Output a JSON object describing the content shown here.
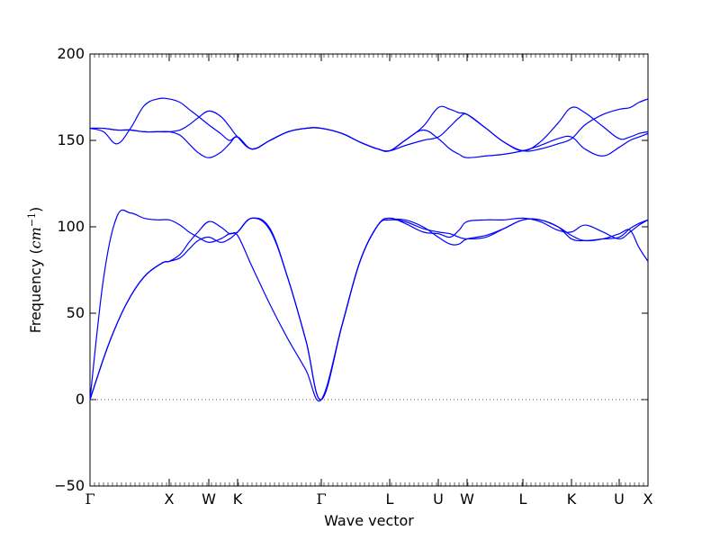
{
  "chart_data": {
    "type": "line",
    "title": "",
    "xlabel": "Wave vector",
    "ylabel": "Frequency",
    "ylabel_unit": "cm",
    "ylabel_unit_exp": "−1",
    "ylim": [
      -50,
      200
    ],
    "yticks": [
      -50,
      0,
      50,
      100,
      150,
      200
    ],
    "xlim": [
      0,
      6.2
    ],
    "zero_line": true,
    "grid": false,
    "line_color": "#0000ff",
    "zero_line_color": "#555555",
    "high_symmetry_points": [
      {
        "label": "Γ",
        "x": 0.0
      },
      {
        "label": "X",
        "x": 0.88
      },
      {
        "label": "W",
        "x": 1.32
      },
      {
        "label": "K",
        "x": 1.64
      },
      {
        "label": "Γ",
        "x": 2.57
      },
      {
        "label": "L",
        "x": 3.33
      },
      {
        "label": "U",
        "x": 3.87
      },
      {
        "label": "W",
        "x": 4.19
      },
      {
        "label": "L",
        "x": 4.81
      },
      {
        "label": "K",
        "x": 5.35
      },
      {
        "label": "U",
        "x": 5.88
      },
      {
        "label": "X",
        "x": 6.2
      }
    ],
    "series": [
      {
        "x": [
          0,
          0.2,
          0.4,
          0.6,
          0.8,
          0.88,
          1.0,
          1.1,
          1.2,
          1.32,
          1.45,
          1.55,
          1.64,
          1.8,
          2.0,
          2.2,
          2.4,
          2.57,
          2.8,
          3.0,
          3.2,
          3.33,
          3.5,
          3.7,
          3.87,
          4.0,
          4.1,
          4.19,
          4.4,
          4.6,
          4.81,
          5.0,
          5.2,
          5.35,
          5.5,
          5.7,
          5.88,
          6.0,
          6.1,
          6.2
        ],
        "y": [
          0,
          31,
          55,
          71,
          79,
          80,
          84,
          91,
          97,
          103,
          100,
          96,
          95,
          77,
          55,
          35,
          17,
          0,
          43,
          80,
          101,
          104,
          104,
          100,
          94,
          90,
          90,
          93,
          95,
          99,
          104,
          104,
          100,
          95,
          92,
          93,
          96,
          98,
          88,
          80
        ]
      },
      {
        "x": [
          0,
          0.2,
          0.4,
          0.6,
          0.8,
          0.88,
          1.0,
          1.1,
          1.2,
          1.32,
          1.45,
          1.55,
          1.64,
          1.8,
          2.0,
          2.2,
          2.4,
          2.57,
          2.8,
          3.0,
          3.2,
          3.33,
          3.5,
          3.7,
          3.87,
          4.0,
          4.1,
          4.19,
          4.4,
          4.6,
          4.81,
          5.0,
          5.2,
          5.35,
          5.5,
          5.7,
          5.88,
          6.0,
          6.1,
          6.2
        ],
        "y": [
          0,
          31,
          55,
          71,
          79,
          80,
          82,
          87,
          92,
          94,
          91,
          93,
          97,
          105,
          98,
          70,
          34,
          0,
          43,
          80,
          101,
          104,
          103,
          99,
          97,
          96,
          94,
          93,
          94,
          99,
          104,
          104,
          100,
          93,
          92,
          93,
          94,
          99,
          102,
          104
        ]
      },
      {
        "x": [
          0,
          0.15,
          0.3,
          0.45,
          0.6,
          0.75,
          0.88,
          1.0,
          1.1,
          1.2,
          1.32,
          1.45,
          1.55,
          1.64,
          1.8,
          2.0,
          2.2,
          2.4,
          2.57,
          2.8,
          3.0,
          3.2,
          3.33,
          3.5,
          3.7,
          3.87,
          4.0,
          4.1,
          4.19,
          4.4,
          4.6,
          4.81,
          5.0,
          5.2,
          5.35,
          5.5,
          5.7,
          5.88,
          6.0,
          6.1,
          6.2
        ],
        "y": [
          0,
          70,
          106,
          108,
          105,
          104,
          104,
          101,
          97,
          94,
          91,
          93,
          96,
          97,
          105,
          99,
          70,
          34,
          0,
          43,
          80,
          101,
          105,
          102,
          97,
          96,
          94,
          98,
          103,
          104,
          104,
          105,
          103,
          98,
          97,
          101,
          97,
          93,
          97,
          101,
          104
        ]
      },
      {
        "x": [
          0,
          0.15,
          0.3,
          0.45,
          0.6,
          0.75,
          0.88,
          1.0,
          1.1,
          1.2,
          1.32,
          1.45,
          1.55,
          1.64,
          1.8,
          2.0,
          2.2,
          2.4,
          2.57,
          2.8,
          3.0,
          3.2,
          3.33,
          3.5,
          3.7,
          3.87,
          4.0,
          4.1,
          4.19,
          4.4,
          4.6,
          4.81,
          5.0,
          5.2,
          5.35,
          5.5,
          5.7,
          5.88,
          6.0,
          6.1,
          6.2
        ],
        "y": [
          157,
          155,
          148,
          157,
          170,
          174,
          174,
          172,
          168,
          164,
          159,
          154,
          150,
          152,
          145,
          150,
          155,
          157,
          157,
          154,
          149,
          145,
          144,
          150,
          156,
          151,
          145,
          142,
          140,
          141,
          142,
          144,
          147,
          151,
          152,
          145,
          141,
          146,
          150,
          152,
          154
        ]
      },
      {
        "x": [
          0,
          0.15,
          0.3,
          0.45,
          0.6,
          0.75,
          0.88,
          1.0,
          1.1,
          1.2,
          1.32,
          1.45,
          1.55,
          1.64,
          1.8,
          2.0,
          2.2,
          2.4,
          2.57,
          2.8,
          3.0,
          3.2,
          3.33,
          3.5,
          3.7,
          3.87,
          4.0,
          4.1,
          4.19,
          4.4,
          4.6,
          4.81,
          5.0,
          5.2,
          5.35,
          5.5,
          5.7,
          5.88,
          6.0,
          6.1,
          6.2
        ],
        "y": [
          157,
          157,
          156,
          156,
          155,
          155,
          155,
          156,
          159,
          163,
          167,
          164,
          158,
          152,
          145,
          150,
          155,
          157,
          157,
          154,
          149,
          145,
          144,
          147,
          150,
          152,
          158,
          163,
          165,
          157,
          149,
          144,
          145,
          148,
          151,
          159,
          165,
          168,
          169,
          172,
          174
        ]
      },
      {
        "x": [
          0,
          0.15,
          0.3,
          0.45,
          0.6,
          0.75,
          0.88,
          1.0,
          1.1,
          1.2,
          1.32,
          1.45,
          1.55,
          1.64,
          1.8,
          2.0,
          2.2,
          2.4,
          2.57,
          2.8,
          3.0,
          3.2,
          3.33,
          3.5,
          3.7,
          3.87,
          4.0,
          4.1,
          4.19,
          4.4,
          4.6,
          4.81,
          5.0,
          5.2,
          5.35,
          5.5,
          5.7,
          5.88,
          6.0,
          6.1,
          6.2
        ],
        "y": [
          157,
          157,
          156,
          156,
          155,
          155,
          155,
          153,
          148,
          143,
          140,
          143,
          148,
          152,
          145,
          150,
          155,
          157,
          157,
          154,
          149,
          145,
          144,
          150,
          158,
          169,
          168,
          166,
          165,
          157,
          149,
          144,
          149,
          160,
          169,
          166,
          158,
          151,
          152,
          154,
          155
        ]
      }
    ]
  }
}
